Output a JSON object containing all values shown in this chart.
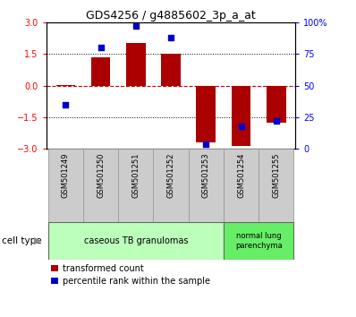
{
  "title": "GDS4256 / g4885602_3p_a_at",
  "samples": [
    "GSM501249",
    "GSM501250",
    "GSM501251",
    "GSM501252",
    "GSM501253",
    "GSM501254",
    "GSM501255"
  ],
  "bar_values": [
    0.02,
    1.35,
    2.0,
    1.5,
    -2.7,
    -2.85,
    -1.75
  ],
  "dot_values": [
    35,
    80,
    97,
    88,
    4,
    18,
    22
  ],
  "ylim": [
    -3,
    3
  ],
  "y2lim": [
    0,
    100
  ],
  "yticks": [
    -3,
    -1.5,
    0,
    1.5,
    3
  ],
  "y2ticks": [
    0,
    25,
    50,
    75,
    100
  ],
  "bar_color": "#aa0000",
  "dot_color": "#0000cc",
  "hline_color": "#cc0000",
  "grid_color": "#000000",
  "legend_labels": [
    "transformed count",
    "percentile rank within the sample"
  ],
  "cell_type_label": "cell type",
  "background_color": "#ffffff",
  "bar_width": 0.55,
  "group1_color": "#bbffbb",
  "group2_color": "#66ee66",
  "label_bg_color": "#cccccc"
}
